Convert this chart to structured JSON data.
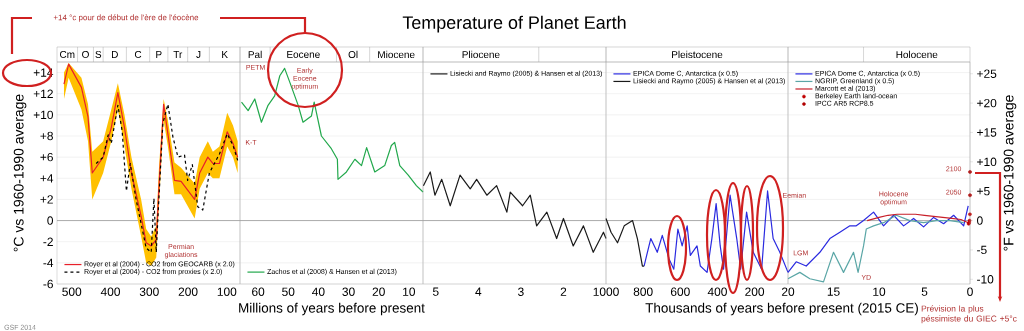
{
  "chart_data": [
    {
      "type": "line",
      "ylabel": "°C vs 1960-1990 average",
      "xlim": [
        538,
        66
      ],
      "xticks": [
        500,
        400,
        300,
        200,
        100
      ],
      "ylim": [
        -6,
        15
      ],
      "yticks": [
        -6,
        -4,
        -2,
        0,
        {
          "value": 2,
          "label": "+2"
        },
        {
          "value": 4,
          "label": "+4"
        },
        {
          "value": 6,
          "label": "+6"
        },
        {
          "value": 8,
          "label": "+8"
        },
        {
          "value": 10,
          "label": "+10"
        },
        {
          "value": 12,
          "label": "+12"
        },
        {
          "value": 14,
          "label": "+14"
        }
      ],
      "grid": "y",
      "ref_lines": [
        {
          "axis": "y",
          "value": 0
        }
      ],
      "legend": "bottom left",
      "annotations": [
        "+14 °c pour de début de l'ère de l'éocène",
        "GSF 2014",
        "Permian glaciations",
        "Cm",
        "O",
        "S",
        "D",
        "C",
        "P",
        "Tr",
        "J",
        "K"
      ],
      "series": [
        {
          "name": "Royer et al (2004) - CO2 from GEOCARB (x 2.0)",
          "color": "#e8202a",
          "x": [
            520,
            508,
            475,
            458,
            447,
            419,
            398,
            381,
            364,
            346,
            321,
            308,
            295,
            282,
            275,
            263,
            252,
            235,
            218,
            183,
            170,
            149,
            136,
            119,
            99,
            84,
            72
          ],
          "values": [
            12.9,
            14.8,
            12.6,
            9.8,
            4.5,
            6.0,
            8.8,
            12.1,
            8.8,
            4.5,
            0.4,
            -2.1,
            -2.4,
            -1.8,
            3.2,
            11.0,
            8.2,
            3.8,
            3.7,
            2.0,
            4.5,
            6.0,
            5.4,
            5.4,
            8.4,
            7.3,
            6.0
          ],
          "lower": [
            11.5,
            13.5,
            10.5,
            7.5,
            2.0,
            4.5,
            7.5,
            10.5,
            7.0,
            3.0,
            -1.5,
            -4.0,
            -4.3,
            -3.5,
            1.5,
            9.5,
            7.0,
            2.5,
            2.5,
            0.2,
            3.0,
            4.5,
            4.0,
            4.0,
            7.0,
            6.0,
            4.5
          ],
          "upper": [
            14.0,
            14.9,
            13.5,
            11.0,
            6.5,
            7.5,
            10.5,
            13.0,
            10.0,
            6.0,
            2.0,
            -0.8,
            -1.5,
            -0.5,
            5.0,
            11.5,
            9.5,
            5.5,
            5.0,
            3.5,
            6.0,
            7.5,
            6.5,
            7.0,
            10.2,
            9.0,
            7.5
          ]
        },
        {
          "name": "Royer et al (2004) - CO2 from proxies (x 2.0)",
          "color": "#000000",
          "line_style": "dashed",
          "x": [
            437,
            419,
            406,
            398,
            381,
            370,
            359,
            349,
            334,
            308,
            295,
            288,
            282,
            278,
            265,
            252,
            239,
            226,
            209,
            201,
            189,
            175,
            162,
            145,
            119,
            99,
            84,
            72
          ],
          "values": [
            5.4,
            6.0,
            8.1,
            7.3,
            10.9,
            8.5,
            2.8,
            5.4,
            2.0,
            -2.6,
            -3.0,
            2.1,
            -3.0,
            0.1,
            9.2,
            11.0,
            7.9,
            6.0,
            6.2,
            3.8,
            5.3,
            1.3,
            1.0,
            4.5,
            6.3,
            8.2,
            7.1,
            5.7
          ]
        }
      ]
    },
    {
      "type": "line",
      "xlabel": "Millions of years before present",
      "xlim": [
        66,
        5.3
      ],
      "xticks": [
        60,
        50,
        40,
        30,
        20,
        10
      ],
      "ylim": [
        -6,
        15
      ],
      "yticks": [
        -6,
        -4,
        -2,
        0,
        2,
        4,
        6,
        8,
        10,
        12,
        14
      ],
      "tick_labels": "x",
      "grid": "y",
      "ref_lines": [
        {
          "axis": "y",
          "value": 0
        }
      ],
      "legend": "bottom left",
      "annotations": [
        "PETM",
        "K-T",
        "Early Eocene optimum",
        "Pal",
        "Eocene",
        "Ol",
        "Miocene"
      ],
      "series": [
        {
          "name": "Zachos et al (2008) & Hansen et al (2013)",
          "color": "#22a84c",
          "x": [
            65.5,
            63.3,
            61.1,
            58.9,
            56.7,
            54.5,
            52.8,
            51.2,
            49.5,
            46.7,
            45.1,
            42.3,
            41.4,
            39.0,
            35.7,
            33.7,
            33.5,
            30.7,
            27.9,
            25.7,
            24.0,
            21.3,
            18.0,
            15.8,
            14.7,
            13.0,
            10.2,
            7.5,
            5.3
          ],
          "values": [
            11.2,
            10.4,
            11.5,
            9.3,
            10.9,
            11.8,
            13.7,
            14.4,
            13.1,
            10.9,
            9.3,
            9.9,
            11.2,
            8.0,
            6.8,
            5.8,
            3.9,
            4.6,
            5.8,
            5.2,
            6.9,
            4.6,
            5.2,
            7.1,
            7.4,
            5.2,
            4.3,
            3.3,
            2.7
          ]
        }
      ]
    },
    {
      "type": "line",
      "title": "Temperature of Planet Earth",
      "xlim": [
        5.3,
        1
      ],
      "xticks": [
        5,
        4,
        3,
        2
      ],
      "ylim": [
        -6,
        15
      ],
      "yticks": [
        -6,
        -4,
        -2,
        0,
        2,
        4,
        6,
        8,
        10,
        12,
        14
      ],
      "tick_labels": "x",
      "grid": "y",
      "ref_lines": [
        {
          "axis": "y",
          "value": 0
        }
      ],
      "legend": "top left",
      "annotations": [
        "Pliocene"
      ],
      "series": [
        {
          "name": "Lisiecki and Raymo (2005) & Hansen et al (2013)",
          "color": "#1a1a1a",
          "x": [
            5.29,
            5.13,
            5.02,
            4.86,
            4.66,
            4.43,
            4.19,
            4.04,
            3.8,
            3.57,
            3.33,
            3.25,
            2.96,
            2.78,
            2.63,
            2.39,
            2.16,
            2.0,
            1.77,
            1.53,
            1.3,
            1.06,
            1.0
          ],
          "values": [
            3.3,
            4.6,
            2.4,
            3.9,
            1.4,
            4.3,
            3.0,
            3.9,
            2.4,
            3.3,
            0.8,
            2.7,
            1.4,
            2.4,
            -0.5,
            0.8,
            -1.7,
            0.2,
            -2.4,
            -0.5,
            -3.0,
            -1.1,
            -1.7
          ]
        }
      ]
    },
    {
      "type": "line",
      "xlabel": "Thousands of years before present (2015 CE)",
      "xlim": [
        1000,
        20
      ],
      "xticks": [
        1000,
        800,
        600,
        400,
        200,
        20
      ],
      "ylim": [
        -6,
        15
      ],
      "yticks": [
        -6,
        -4,
        -2,
        0,
        2,
        4,
        6,
        8,
        10,
        12,
        14
      ],
      "tick_labels": "x",
      "grid": "y",
      "ref_lines": [
        {
          "axis": "y",
          "value": 0
        }
      ],
      "legend": "top left",
      "annotations": [
        "Eemian",
        "Pleistocene"
      ],
      "series": [
        {
          "name": "EPICA Dome C, Antarctica (x 0.5)",
          "color": "#2a2ae0",
          "x": [
            795,
            759,
            724,
            697,
            661,
            635,
            613,
            590,
            563,
            546,
            510,
            492,
            456,
            430,
            407,
            385,
            367,
            332,
            296,
            275,
            243,
            207,
            162,
            130,
            100,
            64,
            20
          ],
          "values": [
            -4.3,
            -1.7,
            -3.0,
            -1.4,
            -3.6,
            -4.6,
            -0.8,
            -2.4,
            -0.5,
            -3.3,
            -2.4,
            -4.3,
            -4.9,
            -1.7,
            1.6,
            -2.4,
            -4.6,
            2.4,
            -1.7,
            -4.6,
            0.8,
            -3.0,
            -4.6,
            2.8,
            -1.7,
            -3.0,
            -4.9
          ]
        },
        {
          "name": "Lisiecki and Raymo (2005) & Hansen et al (2013)",
          "color": "#1a1a1a",
          "x": [
            1000,
            973,
            938,
            902,
            857,
            831,
            804,
            795
          ],
          "values": [
            0.2,
            -1.1,
            -2.1,
            -0.5,
            0,
            -1.7,
            -4.3,
            -4.3
          ]
        }
      ]
    },
    {
      "type": "line",
      "xlim": [
        20,
        0
      ],
      "xticks": [
        15,
        10,
        5,
        0
      ],
      "ylim": [
        -6,
        15
      ],
      "yticks": [
        -6,
        -4,
        -2,
        0,
        2,
        4,
        6,
        8,
        10,
        12,
        14
      ],
      "tick_labels": "x",
      "y2label": "°F vs 1960-1990 average",
      "y2lim": [
        -10.8,
        27
      ],
      "y2ticks": [
        {
          "value": -10,
          "label": "-10"
        },
        {
          "value": -5,
          "label": "-5"
        },
        {
          "value": 0,
          "label": "0"
        },
        {
          "value": 5,
          "label": "+5"
        },
        {
          "value": 10,
          "label": "+10"
        },
        {
          "value": 15,
          "label": "+15"
        },
        {
          "value": 20,
          "label": "+20"
        },
        {
          "value": 25,
          "label": "+25"
        }
      ],
      "grid": "y",
      "ref_lines": [
        {
          "axis": "y",
          "value": 0
        }
      ],
      "legend": "top left",
      "annotations": [
        "Prévision la plus péssimiste du GIEC +5°c",
        "LGM",
        "YD",
        "Holocene optimum",
        "2100",
        "2050",
        "Holocene"
      ],
      "series": [
        {
          "name": "EPICA Dome C, Antarctica (x 0.5)",
          "color": "#2a2ae0",
          "x": [
            20,
            19.1,
            18.0,
            16.5,
            15.4,
            14.3,
            13.2,
            12.5,
            11.7,
            10.6,
            9.5,
            8.4,
            7.3,
            6.2,
            5.1,
            4.0,
            2.9,
            1.8,
            0.7,
            0.2
          ],
          "values": [
            -4.9,
            -3.9,
            -4.3,
            -3.0,
            -1.7,
            -1.1,
            -0.5,
            -0.5,
            0,
            0.8,
            -0.5,
            0.5,
            -0.5,
            0.2,
            -0.6,
            0.3,
            -0.3,
            0.5,
            -0.5,
            1.4
          ]
        },
        {
          "name": "NGRIP, Greenland (x 0.5)",
          "color": "#5aa6a6",
          "x": [
            20,
            18.7,
            17.6,
            16.1,
            15.0,
            13.9,
            12.8,
            12.3,
            11.7,
            11.4,
            10.6,
            9.5,
            8.1,
            6.6,
            5.1,
            3.7,
            2.2,
            0.7
          ],
          "values": [
            -5.5,
            -4.9,
            -5.5,
            -5.8,
            -3.0,
            -4.9,
            -3.0,
            -4.9,
            -2.4,
            -0.8,
            -0.5,
            -0.2,
            0.5,
            0,
            -0.2,
            0,
            0,
            -0.2
          ]
        },
        {
          "name": "Marcott et al (2013)",
          "color": "#c8202a",
          "x": [
            11.3,
            10,
            9,
            8,
            7,
            6,
            5,
            4,
            3,
            2,
            1,
            0.2
          ],
          "values": [
            0.0,
            0.3,
            0.5,
            0.6,
            0.6,
            0.6,
            0.5,
            0.4,
            0.3,
            0.2,
            0.1,
            -0.2
          ]
        },
        {
          "name": "Berkeley Earth land-ocean",
          "type": "scatter",
          "color": "#c00000",
          "x": [
            0.15,
            0.1,
            0.05,
            0.01
          ],
          "values": [
            -0.3,
            -0.2,
            0.0,
            0.6
          ]
        },
        {
          "name": "IPCC AR5 RCP8.5",
          "type": "scatter",
          "color": "#b00000",
          "x": [
            0,
            0
          ],
          "values": [
            2.4,
            4.6
          ]
        }
      ]
    }
  ]
}
